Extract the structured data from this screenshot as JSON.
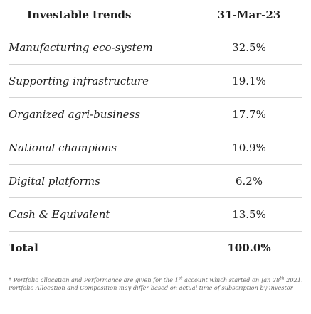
{
  "header": {
    "left": "Investable trends",
    "right": "31-Mar-23"
  },
  "rows": [
    {
      "label": "Manufacturing eco-system",
      "value": "32.5%"
    },
    {
      "label": "Supporting infrastructure",
      "value": "19.1%"
    },
    {
      "label": "Organized agri-business",
      "value": "17.7%"
    },
    {
      "label": "National champions",
      "value": "10.9%"
    },
    {
      "label": "Digital platforms",
      "value": "6.2%"
    },
    {
      "label": "Cash & Equivalent",
      "value": "13.5%"
    },
    {
      "label": "Total",
      "value": "100.0%"
    }
  ],
  "footnote": {
    "part1": "* Portfolio allocation and Performance are given for the 1",
    "sup1": "st",
    "part2": " account which started on Jan 28",
    "sup2": "th",
    "part3": " 2021. Portfolio Allocation and Composition may differ based on actual time of subscription by investor"
  }
}
